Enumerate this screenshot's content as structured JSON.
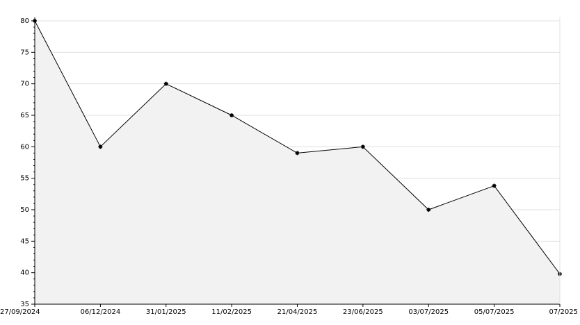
{
  "chart_data": {
    "type": "area",
    "categories": [
      "27/09/2024",
      "06/12/2024",
      "31/01/2025",
      "11/02/2025",
      "21/04/2025",
      "23/06/2025",
      "03/07/2025",
      "05/07/2025",
      "07/2025"
    ],
    "values": [
      80,
      60,
      70,
      65,
      59,
      60,
      50,
      53.8,
      39.8
    ],
    "color": "#000000",
    "fill": "#f2f2f2",
    "ylim": [
      35,
      80
    ],
    "yticks": [
      35,
      40,
      45,
      50,
      55,
      60,
      65,
      70,
      75,
      80
    ],
    "grid": true
  }
}
